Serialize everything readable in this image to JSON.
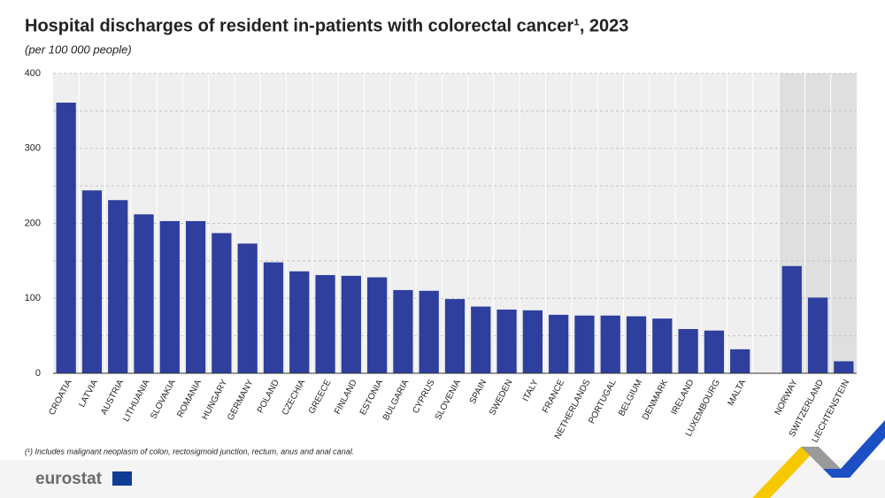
{
  "chart_data": {
    "type": "bar",
    "title": "Hospital discharges of resident in-patients with colorectal cancer¹, 2023",
    "subtitle": "(per 100 000 people)",
    "footnote": "(¹) Includes malignant neoplasm of colon, rectosigmoid junction, rectum, anus and anal canal.",
    "source": "eurostat",
    "categories": [
      "CROATIA",
      "LATVIA",
      "AUSTRIA",
      "LITHUANIA",
      "SLOVAKIA",
      "ROMANIA",
      "HUNGARY",
      "GERMANY",
      "POLAND",
      "CZECHIA",
      "GREECE",
      "FINLAND",
      "ESTONIA",
      "BULGARIA",
      "CYPRUS",
      "SLOVENIA",
      "SPAIN",
      "SWEDEN",
      "ITALY",
      "FRANCE",
      "NETHERLANDS",
      "PORTUGAL",
      "BELGIUM",
      "DENMARK",
      "IRELAND",
      "LUXEMBOURG",
      "MALTA",
      null,
      "NORWAY",
      "SWITZERLAND",
      "LIECHTENSTEIN"
    ],
    "values": [
      361,
      244,
      231,
      212,
      203,
      203,
      187,
      173,
      148,
      136,
      131,
      130,
      128,
      111,
      110,
      99,
      89,
      85,
      84,
      78,
      77,
      77,
      76,
      73,
      59,
      57,
      32,
      null,
      143,
      101,
      16
    ],
    "color": "#2e3f9e",
    "ylim": [
      0,
      400
    ],
    "yticks": [
      0,
      100,
      200,
      300,
      400
    ],
    "minor_yticks": [
      50,
      150,
      250,
      350
    ],
    "grid": true
  }
}
